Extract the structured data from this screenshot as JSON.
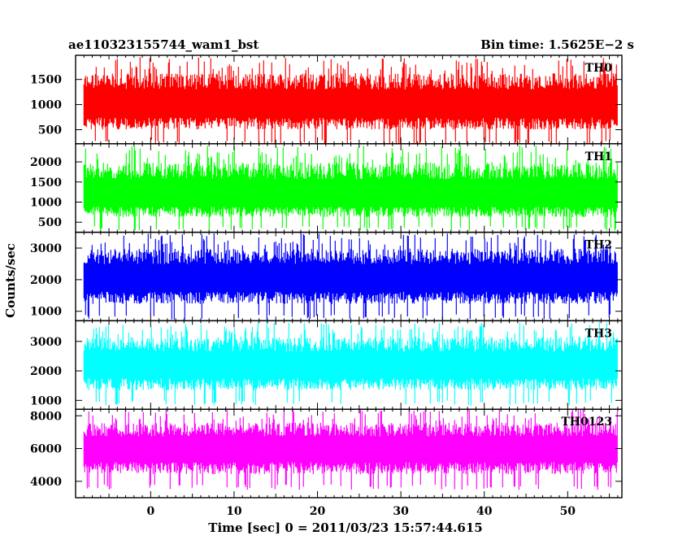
{
  "header": {
    "title_left": "ae110323155744_wam1_bst",
    "title_right": "Bin time: 1.5625E−2 s"
  },
  "axes": {
    "xlabel": "Time [sec] 0 = 2011/03/23 15:57:44.615",
    "ylabel": "Counts/sec"
  },
  "chart_data": {
    "type": "line",
    "title": "ae110323155744_wam1_bst",
    "subtitle": "Bin time: 1.5625E−2 s",
    "xlabel": "Time [sec] 0 = 2011/03/23 15:57:44.615",
    "ylabel": "Counts/sec",
    "xlim": [
      -9,
      56.5
    ],
    "data_range_x": [
      -8,
      56
    ],
    "x_ticks": [
      0,
      10,
      20,
      30,
      40,
      50
    ],
    "x_tick_labels": [
      "0",
      "10",
      "20",
      "30",
      "40",
      "50"
    ],
    "grid": false,
    "legend": "panel labels top-right",
    "panels": [
      {
        "name": "TH0",
        "color": "#ff0000",
        "ylim": [
          220,
          1980
        ],
        "mean": 980,
        "low": 300,
        "high": 1900,
        "yticks": [
          500,
          1000,
          1500
        ],
        "ytick_labels": [
          "500",
          "1000",
          "1500"
        ]
      },
      {
        "name": "TH1",
        "color": "#00ff00",
        "ylim": [
          250,
          2450
        ],
        "mean": 1150,
        "low": 400,
        "high": 2350,
        "yticks": [
          500,
          1000,
          1500,
          2000
        ],
        "ytick_labels": [
          "500",
          "1000",
          "1500",
          "2000"
        ]
      },
      {
        "name": "TH2",
        "color": "#0000ff",
        "ylim": [
          700,
          3500
        ],
        "mean": 2000,
        "low": 900,
        "high": 3400,
        "yticks": [
          1000,
          2000,
          3000
        ],
        "ytick_labels": [
          "1000",
          "2000",
          "3000"
        ]
      },
      {
        "name": "TH3",
        "color": "#00ffff",
        "ylim": [
          700,
          3700
        ],
        "mean": 2150,
        "low": 1000,
        "high": 3600,
        "yticks": [
          1000,
          2000,
          3000
        ],
        "ytick_labels": [
          "1000",
          "2000",
          "3000"
        ]
      },
      {
        "name": "TH0123",
        "color": "#ff00ff",
        "ylim": [
          3000,
          8400
        ],
        "mean": 5900,
        "low": 3800,
        "high": 8300,
        "yticks": [
          4000,
          6000,
          8000
        ],
        "ytick_labels": [
          "4000",
          "6000",
          "8000"
        ]
      }
    ]
  }
}
